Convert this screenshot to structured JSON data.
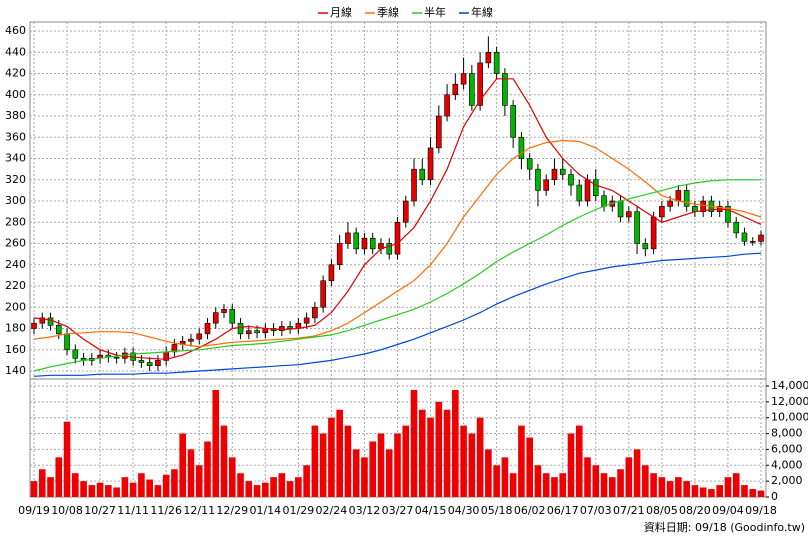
{
  "chart_data": {
    "type": "candlestick",
    "legend": "top",
    "grid": true,
    "categories": [
      "09/19",
      null,
      null,
      null,
      "10/08",
      null,
      null,
      null,
      "10/27",
      null,
      null,
      null,
      "11/11",
      null,
      null,
      null,
      "11/26",
      null,
      null,
      null,
      "12/11",
      null,
      null,
      null,
      "12/29",
      null,
      null,
      null,
      "01/14",
      null,
      null,
      null,
      "01/29",
      null,
      null,
      null,
      "02/24",
      null,
      null,
      null,
      "03/12",
      null,
      null,
      null,
      "03/27",
      null,
      null,
      null,
      "04/15",
      null,
      null,
      null,
      "04/30",
      null,
      null,
      null,
      "05/18",
      null,
      null,
      null,
      "06/02",
      null,
      null,
      null,
      "06/17",
      null,
      null,
      null,
      "07/03",
      null,
      null,
      null,
      "07/21",
      null,
      null,
      null,
      "08/05",
      null,
      null,
      null,
      "08/20",
      null,
      null,
      null,
      "09/04",
      null,
      null,
      null,
      "09/18"
    ],
    "open": [
      180,
      185,
      190,
      183,
      175,
      160,
      152,
      150,
      152,
      155,
      153,
      152,
      157,
      150,
      148,
      145,
      150,
      158,
      165,
      168,
      170,
      175,
      185,
      195,
      198,
      185,
      175,
      178,
      176,
      180,
      178,
      182,
      180,
      185,
      190,
      200,
      225,
      240,
      260,
      270,
      255,
      265,
      255,
      260,
      250,
      280,
      300,
      330,
      320,
      350,
      380,
      400,
      410,
      420,
      390,
      430,
      440,
      420,
      390,
      360,
      340,
      330,
      310,
      320,
      330,
      325,
      315,
      300,
      320,
      305,
      295,
      300,
      285,
      290,
      260,
      255,
      285,
      295,
      300,
      310,
      295,
      290,
      300,
      290,
      295,
      280,
      270,
      262,
      262
    ],
    "high": [
      190,
      195,
      195,
      188,
      180,
      165,
      157,
      157,
      160,
      160,
      158,
      162,
      162,
      155,
      153,
      155,
      163,
      170,
      173,
      175,
      180,
      190,
      200,
      203,
      203,
      190,
      183,
      183,
      185,
      185,
      187,
      187,
      190,
      195,
      205,
      230,
      245,
      268,
      280,
      275,
      270,
      270,
      265,
      265,
      285,
      305,
      340,
      340,
      360,
      390,
      410,
      420,
      435,
      428,
      440,
      455,
      445,
      425,
      395,
      365,
      345,
      335,
      325,
      340,
      340,
      330,
      320,
      325,
      330,
      310,
      305,
      305,
      295,
      295,
      265,
      290,
      300,
      305,
      315,
      315,
      300,
      305,
      305,
      300,
      300,
      285,
      275,
      266,
      272
    ],
    "low": [
      175,
      180,
      178,
      170,
      155,
      147,
      145,
      145,
      147,
      148,
      147,
      147,
      145,
      143,
      140,
      140,
      145,
      153,
      160,
      163,
      165,
      170,
      180,
      190,
      180,
      170,
      170,
      171,
      171,
      173,
      173,
      175,
      175,
      180,
      185,
      195,
      220,
      235,
      255,
      250,
      250,
      250,
      250,
      245,
      245,
      275,
      295,
      315,
      315,
      345,
      375,
      395,
      405,
      385,
      385,
      425,
      415,
      380,
      350,
      330,
      320,
      295,
      305,
      315,
      320,
      305,
      295,
      295,
      300,
      290,
      290,
      280,
      280,
      250,
      248,
      250,
      280,
      290,
      295,
      290,
      285,
      285,
      285,
      285,
      275,
      265,
      258,
      258,
      258
    ],
    "close": [
      185,
      190,
      183,
      175,
      160,
      152,
      150,
      152,
      155,
      153,
      152,
      157,
      150,
      148,
      145,
      150,
      158,
      165,
      168,
      170,
      175,
      185,
      195,
      198,
      185,
      175,
      178,
      176,
      180,
      178,
      182,
      180,
      185,
      190,
      200,
      225,
      240,
      260,
      270,
      255,
      265,
      255,
      260,
      250,
      280,
      300,
      330,
      320,
      350,
      380,
      400,
      410,
      420,
      390,
      430,
      440,
      420,
      390,
      360,
      340,
      330,
      310,
      320,
      330,
      325,
      315,
      300,
      320,
      305,
      295,
      300,
      285,
      290,
      260,
      255,
      285,
      295,
      300,
      310,
      295,
      290,
      300,
      290,
      295,
      280,
      270,
      262,
      262,
      268
    ],
    "up_color": "#e60000",
    "down_color": "#00b400",
    "ylim": [
      132.5,
      468.5
    ],
    "yticks": [
      140,
      160,
      180,
      200,
      220,
      240,
      260,
      280,
      300,
      320,
      340,
      360,
      380,
      400,
      420,
      440,
      460
    ],
    "series": [
      {
        "name": "月線",
        "color": "#e00000",
        "x": [
          0,
          2,
          4,
          6,
          8,
          10,
          12,
          14,
          16,
          18,
          20,
          22,
          24,
          26,
          28,
          30,
          32,
          34,
          36,
          38,
          40,
          42,
          44,
          46,
          48,
          50,
          52,
          54,
          56,
          58,
          60,
          62,
          64,
          66,
          68,
          70,
          72,
          74,
          76,
          78,
          80,
          82,
          84,
          86,
          88
        ],
        "values": [
          190,
          188,
          182,
          170,
          160,
          155,
          153,
          152,
          151,
          155,
          162,
          170,
          180,
          182,
          180,
          179,
          180,
          183,
          195,
          215,
          240,
          255,
          260,
          275,
          300,
          330,
          370,
          395,
          415,
          415,
          390,
          360,
          340,
          325,
          315,
          310,
          300,
          290,
          280,
          285,
          290,
          292,
          292,
          285,
          278
        ]
      },
      {
        "name": "季線",
        "color": "#ff6a00",
        "x": [
          0,
          2,
          4,
          6,
          8,
          10,
          12,
          14,
          16,
          18,
          20,
          22,
          24,
          26,
          28,
          30,
          32,
          34,
          36,
          38,
          40,
          42,
          44,
          46,
          48,
          50,
          52,
          54,
          56,
          58,
          60,
          62,
          64,
          66,
          68,
          70,
          72,
          74,
          76,
          78,
          80,
          82,
          84,
          86,
          88
        ],
        "values": [
          170,
          172,
          175,
          176,
          177,
          177,
          176,
          172,
          168,
          165,
          163,
          165,
          167,
          168,
          169,
          170,
          171,
          173,
          178,
          185,
          195,
          205,
          215,
          225,
          240,
          260,
          285,
          305,
          325,
          340,
          350,
          355,
          357,
          356,
          350,
          340,
          330,
          318,
          305,
          300,
          297,
          295,
          293,
          290,
          285
        ]
      },
      {
        "name": "半年",
        "color": "#22cc22",
        "x": [
          0,
          2,
          4,
          6,
          8,
          10,
          12,
          14,
          16,
          18,
          20,
          22,
          24,
          26,
          28,
          30,
          32,
          34,
          36,
          38,
          40,
          42,
          44,
          46,
          48,
          50,
          52,
          54,
          56,
          58,
          60,
          62,
          64,
          66,
          68,
          70,
          72,
          74,
          76,
          78,
          80,
          82,
          84,
          86,
          88
        ],
        "values": [
          140,
          144,
          147,
          150,
          152,
          154,
          156,
          157,
          158,
          159,
          160,
          162,
          164,
          165,
          166,
          168,
          170,
          172,
          174,
          178,
          183,
          188,
          193,
          198,
          205,
          213,
          222,
          232,
          243,
          252,
          260,
          268,
          277,
          285,
          292,
          298,
          302,
          306,
          310,
          314,
          317,
          319,
          320,
          320,
          320
        ]
      },
      {
        "name": "年線",
        "color": "#0044dd",
        "x": [
          0,
          2,
          4,
          6,
          8,
          10,
          12,
          14,
          16,
          18,
          20,
          22,
          24,
          26,
          28,
          30,
          32,
          34,
          36,
          38,
          40,
          42,
          44,
          46,
          48,
          50,
          52,
          54,
          56,
          58,
          60,
          62,
          64,
          66,
          68,
          70,
          72,
          74,
          76,
          78,
          80,
          82,
          84,
          86,
          88
        ],
        "values": [
          135,
          136,
          136,
          136,
          137,
          137,
          137,
          138,
          138,
          139,
          140,
          141,
          142,
          143,
          144,
          145,
          146,
          148,
          150,
          153,
          156,
          160,
          165,
          170,
          176,
          182,
          188,
          195,
          203,
          210,
          216,
          222,
          227,
          232,
          235,
          238,
          240,
          242,
          244,
          245,
          246,
          247,
          248,
          250,
          251
        ]
      }
    ],
    "volume": {
      "color": "#ee0000",
      "values": [
        2000,
        3500,
        2500,
        5000,
        9500,
        3000,
        2000,
        1500,
        1800,
        1500,
        1200,
        2500,
        1800,
        3000,
        2200,
        1500,
        2800,
        3500,
        8000,
        6000,
        4000,
        7000,
        13500,
        9000,
        5000,
        3000,
        2000,
        1500,
        1800,
        2500,
        3000,
        2000,
        2500,
        4000,
        9000,
        8000,
        10000,
        11000,
        9000,
        6000,
        5000,
        7000,
        8000,
        6000,
        8000,
        9000,
        13500,
        11000,
        10000,
        12000,
        11000,
        13500,
        9000,
        8000,
        10000,
        6000,
        4000,
        5000,
        3000,
        9000,
        7500,
        4000,
        3000,
        2500,
        3000,
        8000,
        9000,
        5000,
        4000,
        3000,
        2500,
        3500,
        5000,
        6000,
        4000,
        3000,
        2500,
        2000,
        2500,
        2000,
        1500,
        1200,
        1000,
        1500,
        2500,
        3000,
        1500,
        1000,
        800
      ],
      "ylim": [
        0,
        14880
      ],
      "yticks": [
        0,
        {
          "value": 2000,
          "label": "2,000"
        },
        {
          "value": 4000,
          "label": "4,000"
        },
        {
          "value": 6000,
          "label": "6,000"
        },
        {
          "value": 8000,
          "label": "8,000"
        },
        {
          "value": 10000,
          "label": "10,000"
        },
        {
          "value": 12000,
          "label": "12,000"
        },
        {
          "value": 14000,
          "label": "14,000"
        }
      ]
    },
    "footer": "資料日期: 09/18 (Goodinfo.tw)"
  }
}
